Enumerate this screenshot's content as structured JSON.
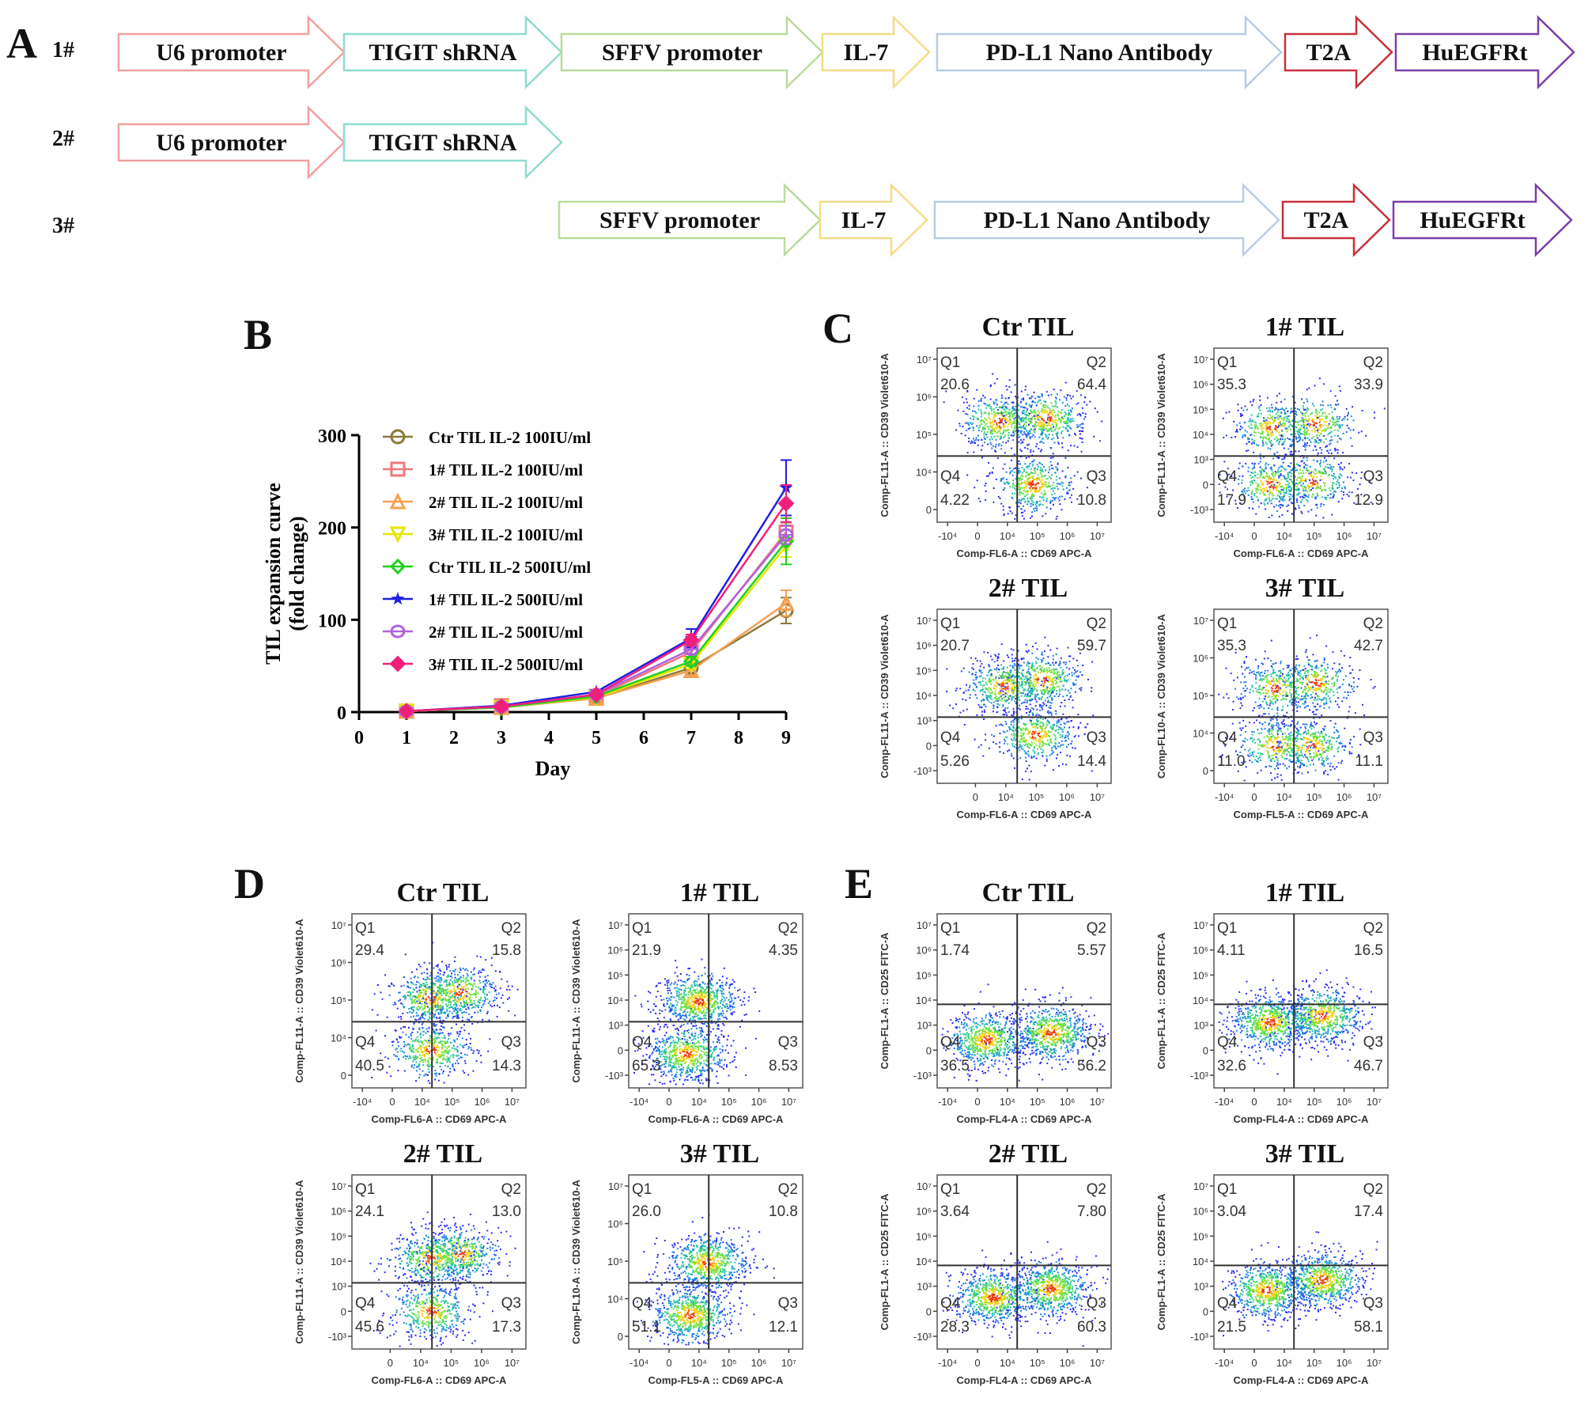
{
  "panel_a": {
    "letter": "A",
    "constructs": [
      {
        "label": "1#",
        "segments": [
          {
            "name": "U6 promoter",
            "color": "#f2a0a0"
          },
          {
            "name": "TIGIT shRNA",
            "color": "#8fdcd0"
          },
          {
            "name": "SFFV promoter",
            "color": "#b9dc9a"
          },
          {
            "name": "IL-7",
            "color": "#f3dd86"
          },
          {
            "name": "PD-L1 Nano Antibody",
            "color": "#b8cce6"
          },
          {
            "name": "T2A",
            "color": "#c8303a"
          },
          {
            "name": "HuEGFRt",
            "color": "#7a3fa8"
          }
        ]
      },
      {
        "label": "2#",
        "segments": [
          {
            "name": "U6 promoter",
            "color": "#f2a0a0"
          },
          {
            "name": "TIGIT shRNA",
            "color": "#8fdcd0"
          }
        ]
      },
      {
        "label": "3#",
        "segments": [
          {
            "name": "SFFV promoter",
            "color": "#b9dc9a"
          },
          {
            "name": "IL-7",
            "color": "#f3dd86"
          },
          {
            "name": "PD-L1 Nano Antibody",
            "color": "#b8cce6"
          },
          {
            "name": "T2A",
            "color": "#c8303a"
          },
          {
            "name": "HuEGFRt",
            "color": "#7a3fa8"
          }
        ]
      }
    ]
  },
  "panel_b": {
    "letter": "B"
  },
  "panel_c": {
    "letter": "C"
  },
  "panel_d": {
    "letter": "D"
  },
  "panel_e": {
    "letter": "E"
  },
  "chart_data": [
    {
      "id": "B",
      "type": "line",
      "title": "",
      "xlabel": "Day",
      "ylabel": "TIL expansion curve (fold change)",
      "xlim": [
        0,
        9
      ],
      "ylim": [
        0,
        300
      ],
      "xticks": [
        "0",
        "1",
        "2",
        "3",
        "4",
        "5",
        "6",
        "7",
        "8",
        "9"
      ],
      "yticks": [
        "0",
        "100",
        "200",
        "300"
      ],
      "grid": false,
      "legend_position": "top-left",
      "x": [
        1,
        3,
        5,
        7,
        9
      ],
      "series": [
        {
          "name": "Ctr TIL IL-2 100IU/ml",
          "color": "#8b7a3a",
          "marker": "circle-open",
          "values": [
            1,
            5,
            15,
            48,
            110
          ],
          "error": [
            0,
            1,
            2,
            5,
            14
          ]
        },
        {
          "name": "1# TIL IL-2 100IU/ml",
          "color": "#f07878",
          "marker": "square-open",
          "values": [
            1,
            7,
            17,
            65,
            195
          ],
          "error": [
            0,
            1,
            2,
            5,
            10
          ]
        },
        {
          "name": "2# TIL IL-2 100IU/ml",
          "color": "#f5a050",
          "marker": "triangle-up-open",
          "values": [
            1,
            5,
            15,
            45,
            118
          ],
          "error": [
            0,
            1,
            2,
            5,
            14
          ]
        },
        {
          "name": "3# TIL IL-2 100IU/ml",
          "color": "#e6e600",
          "marker": "triangle-down-open",
          "values": [
            1,
            5,
            16,
            52,
            180
          ],
          "error": [
            0,
            1,
            2,
            5,
            12
          ]
        },
        {
          "name": "Ctr TIL IL-2 500IU/ml",
          "color": "#20d020",
          "marker": "diamond-open",
          "values": [
            1,
            5,
            17,
            55,
            185
          ],
          "error": [
            0,
            1,
            2,
            5,
            25
          ]
        },
        {
          "name": "1# TIL IL-2 500IU/ml",
          "color": "#2020e0",
          "marker": "star",
          "values": [
            1,
            7,
            22,
            80,
            243
          ],
          "error": [
            0,
            1,
            2,
            10,
            30
          ]
        },
        {
          "name": "2# TIL IL-2 500IU/ml",
          "color": "#b060e0",
          "marker": "hexagon-open",
          "values": [
            1,
            6,
            19,
            68,
            192
          ],
          "error": [
            0,
            1,
            2,
            5,
            10
          ]
        },
        {
          "name": "3# TIL IL-2 500IU/ml",
          "color": "#f0207a",
          "marker": "diamond-filled",
          "values": [
            1,
            6,
            19,
            78,
            226
          ],
          "error": [
            0,
            1,
            2,
            6,
            20
          ]
        }
      ]
    },
    {
      "id": "C",
      "type": "scatter",
      "subtype": "flow-quadrant",
      "plots": [
        {
          "title": "Ctr TIL",
          "xlabel": "Comp-FL6-A :: CD69 APC-A",
          "ylabel": "Comp-FL11-A :: CD39 Violet610-A",
          "Q1": "20.6",
          "Q2": "64.4",
          "Q3": "10.8",
          "Q4": "4.22",
          "yticks": [
            "10⁷",
            "10⁶",
            "10⁵",
            "10⁴",
            "0"
          ],
          "xticks": [
            "-10⁴",
            "0",
            "10⁴",
            "10⁵",
            "10⁶",
            "10⁷"
          ],
          "hot": [
            [
              0.62,
              0.4
            ],
            [
              0.35,
              0.42
            ],
            [
              0.55,
              0.78
            ]
          ]
        },
        {
          "title": "1# TIL",
          "xlabel": "Comp-FL6-A :: CD69 APC-A",
          "ylabel": "Comp-FL11-A :: CD39 Violet610-A",
          "Q1": "35.3",
          "Q2": "33.9",
          "Q3": "12.9",
          "Q4": "17.9",
          "yticks": [
            "10⁷",
            "10⁶",
            "10⁵",
            "10⁴",
            "10³",
            "0",
            "-10³"
          ],
          "xticks": [
            "-10⁴",
            "0",
            "10⁴",
            "10⁵",
            "10⁶",
            "10⁷"
          ],
          "hot": [
            [
              0.33,
              0.45
            ],
            [
              0.58,
              0.43
            ],
            [
              0.32,
              0.78
            ],
            [
              0.56,
              0.76
            ]
          ]
        },
        {
          "title": "2# TIL",
          "xlabel": "Comp-FL6-A :: CD69 APC-A",
          "ylabel": "Comp-FL11-A :: CD39 Violet610-A",
          "Q1": "20.7",
          "Q2": "59.7",
          "Q3": "14.4",
          "Q4": "5.26",
          "yticks": [
            "10⁷",
            "10⁶",
            "10⁵",
            "10⁴",
            "10³",
            "0",
            "-10³"
          ],
          "xticks": [
            "0",
            "10⁴",
            "10⁵",
            "10⁶",
            "10⁷"
          ],
          "hot": [
            [
              0.6,
              0.4
            ],
            [
              0.38,
              0.44
            ],
            [
              0.56,
              0.72
            ]
          ]
        },
        {
          "title": "3# TIL",
          "xlabel": "Comp-FL5-A :: CD69 APC-A",
          "ylabel": "Comp-FL10-A :: CD39 Violet610-A",
          "Q1": "35.3",
          "Q2": "42.7",
          "Q3": "11.1",
          "Q4": "11.0",
          "yticks": [
            "10⁷",
            "10⁶",
            "10⁵",
            "10⁴",
            "0"
          ],
          "xticks": [
            "-10⁴",
            "0",
            "10⁴",
            "10⁵",
            "10⁶",
            "10⁷"
          ],
          "hot": [
            [
              0.58,
              0.42
            ],
            [
              0.35,
              0.45
            ],
            [
              0.35,
              0.78
            ],
            [
              0.55,
              0.78
            ]
          ]
        }
      ]
    },
    {
      "id": "D",
      "type": "scatter",
      "subtype": "flow-quadrant",
      "plots": [
        {
          "title": "Ctr TIL",
          "xlabel": "Comp-FL6-A :: CD69 APC-A",
          "ylabel": "Comp-FL11-A :: CD39 Violet610-A",
          "Q1": "29.4",
          "Q2": "15.8",
          "Q3": "14.3",
          "Q4": "40.5",
          "yticks": [
            "10⁷",
            "10⁶",
            "10⁵",
            "10⁴",
            "0"
          ],
          "xticks": [
            "-10⁴",
            "0",
            "10⁴",
            "10⁵",
            "10⁶",
            "10⁷"
          ],
          "hot": [
            [
              0.45,
              0.78
            ],
            [
              0.45,
              0.48
            ],
            [
              0.62,
              0.45
            ]
          ]
        },
        {
          "title": "1# TIL",
          "xlabel": "Comp-FL6-A :: CD69 APC-A",
          "ylabel": "Comp-FL11-A :: CD39 Violet610-A",
          "Q1": "21.9",
          "Q2": "4.35",
          "Q3": "8.53",
          "Q4": "65.3",
          "yticks": [
            "10⁷",
            "10⁶",
            "10⁵",
            "10⁴",
            "10³",
            "0",
            "-10³"
          ],
          "xticks": [
            "-10⁴",
            "0",
            "10⁴",
            "10⁵",
            "10⁶",
            "10⁷"
          ],
          "hot": [
            [
              0.33,
              0.8
            ],
            [
              0.4,
              0.5
            ]
          ]
        },
        {
          "title": "2# TIL",
          "xlabel": "Comp-FL6-A :: CD69 APC-A",
          "ylabel": "Comp-FL11-A :: CD39 Violet610-A",
          "Q1": "24.1",
          "Q2": "13.0",
          "Q3": "17.3",
          "Q4": "45.6",
          "yticks": [
            "10⁷",
            "10⁶",
            "10⁵",
            "10⁴",
            "10³",
            "0",
            "-10³"
          ],
          "xticks": [
            "0",
            "10⁴",
            "10⁵",
            "10⁶",
            "10⁷"
          ],
          "hot": [
            [
              0.45,
              0.78
            ],
            [
              0.45,
              0.48
            ],
            [
              0.62,
              0.45
            ]
          ]
        },
        {
          "title": "3# TIL",
          "xlabel": "Comp-FL5-A :: CD69 APC-A",
          "ylabel": "Comp-FL10-A :: CD39 Violet610-A",
          "Q1": "26.0",
          "Q2": "10.8",
          "Q3": "12.1",
          "Q4": "51.1",
          "yticks": [
            "10⁷",
            "10⁶",
            "10⁵",
            "10⁴",
            "0"
          ],
          "xticks": [
            "-10⁴",
            "0",
            "10⁴",
            "10⁵",
            "10⁶",
            "10⁷"
          ],
          "hot": [
            [
              0.35,
              0.8
            ],
            [
              0.45,
              0.5
            ]
          ]
        }
      ]
    },
    {
      "id": "E",
      "type": "scatter",
      "subtype": "flow-quadrant",
      "plots": [
        {
          "title": "Ctr TIL",
          "xlabel": "Comp-FL4-A :: CD69 APC-A",
          "ylabel": "Comp-FL1-A :: CD25 FITC-A",
          "Q1": "1.74",
          "Q2": "5.57",
          "Q3": "56.2",
          "Q4": "36.5",
          "yticks": [
            "10⁷",
            "10⁶",
            "10⁵",
            "10⁴",
            "10³",
            "0",
            "-10³"
          ],
          "xticks": [
            "-10⁴",
            "0",
            "10⁴",
            "10⁵",
            "10⁶",
            "10⁷"
          ],
          "hot": [
            [
              0.28,
              0.72
            ],
            [
              0.65,
              0.68
            ]
          ]
        },
        {
          "title": "1# TIL",
          "xlabel": "Comp-FL4-A :: CD69 APC-A",
          "ylabel": "Comp-FL1-A :: CD25 FITC-A",
          "Q1": "4.11",
          "Q2": "16.5",
          "Q3": "46.7",
          "Q4": "32.6",
          "yticks": [
            "10⁷",
            "10⁶",
            "10⁵",
            "10⁴",
            "10³",
            "0",
            "-10³"
          ],
          "xticks": [
            "-10⁴",
            "0",
            "10⁴",
            "10⁵",
            "10⁶",
            "10⁷"
          ],
          "hot": [
            [
              0.32,
              0.62
            ],
            [
              0.62,
              0.58
            ]
          ]
        },
        {
          "title": "2# TIL",
          "xlabel": "Comp-FL4-A :: CD69 APC-A",
          "ylabel": "Comp-FL1-A :: CD25 FITC-A",
          "Q1": "3.64",
          "Q2": "7.80",
          "Q3": "60.3",
          "Q4": "28.3",
          "yticks": [
            "10⁷",
            "10⁶",
            "10⁵",
            "10⁴",
            "10³",
            "0",
            "-10³"
          ],
          "xticks": [
            "-10⁴",
            "0",
            "10⁴",
            "10⁵",
            "10⁶",
            "10⁷"
          ],
          "hot": [
            [
              0.32,
              0.7
            ],
            [
              0.65,
              0.65
            ]
          ]
        },
        {
          "title": "3# TIL",
          "xlabel": "Comp-FL4-A :: CD69 APC-A",
          "ylabel": "Comp-FL1-A :: CD25 FITC-A",
          "Q1": "3.04",
          "Q2": "17.4",
          "Q3": "58.1",
          "Q4": "21.5",
          "yticks": [
            "10⁷",
            "10⁶",
            "10⁵",
            "10⁴",
            "10³",
            "0",
            "-10³"
          ],
          "xticks": [
            "-10⁴",
            "0",
            "10⁴",
            "10⁵",
            "10⁶",
            "10⁷"
          ],
          "hot": [
            [
              0.3,
              0.66
            ],
            [
              0.62,
              0.6
            ]
          ]
        }
      ]
    }
  ]
}
